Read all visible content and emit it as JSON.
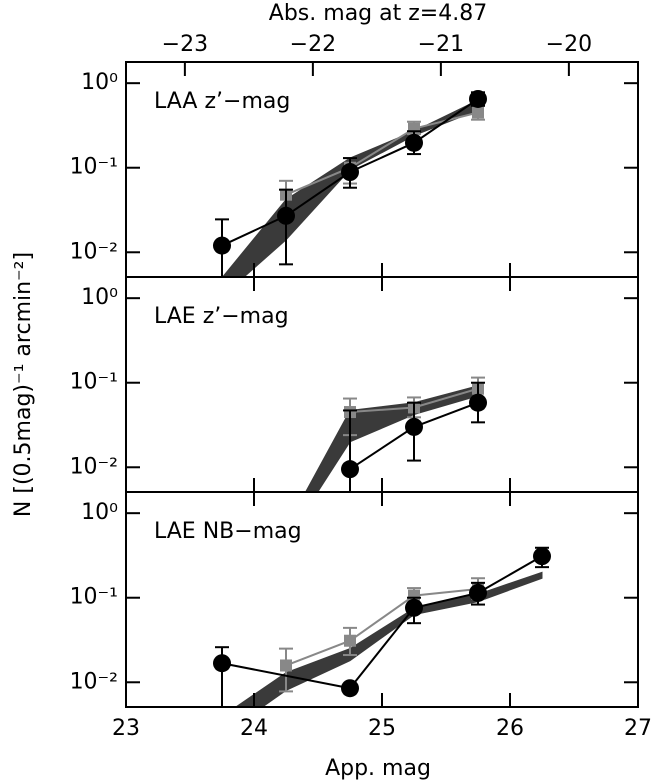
{
  "chart_data": [
    {
      "type": "line",
      "title": "Abs. mag at z=4.87",
      "label": "LAA z’−mag",
      "x2lim": [
        -23.46,
        -19.46
      ],
      "x2ticks": [
        {
          "value": -23,
          "label": "−23"
        },
        {
          "value": -22,
          "label": "−22"
        },
        {
          "value": -21,
          "label": "−21"
        },
        {
          "value": -20,
          "label": "−20"
        }
      ],
      "xlim": [
        23,
        27
      ],
      "xticks": [
        23,
        24,
        25,
        26,
        27
      ],
      "ylim": [
        0.0051,
        1.78
      ],
      "log_y": true,
      "yticks": [
        {
          "value": 1,
          "label": "10⁰"
        },
        {
          "value": 0.1,
          "label": "10⁻¹"
        },
        {
          "value": 0.01,
          "label": "10⁻²"
        }
      ],
      "band": {
        "color": "#3a3a3a",
        "x": [
          23.75,
          24.25,
          24.75,
          25.25,
          25.75
        ],
        "lower": [
          0.003,
          0.014,
          0.095,
          0.24,
          0.48
        ],
        "upper": [
          0.005,
          0.042,
          0.13,
          0.27,
          0.63
        ]
      },
      "series": [
        {
          "color": "#888888",
          "marker": "square",
          "x": [
            24.25,
            24.75,
            25.25,
            25.75
          ],
          "values": [
            0.048,
            0.1,
            0.29,
            0.45
          ],
          "lower": [
            0.031,
            0.065,
            0.25,
            0.37
          ],
          "upper": [
            0.07,
            0.13,
            0.35,
            0.57
          ]
        },
        {
          "color": "#000000",
          "marker": "circle",
          "x": [
            23.75,
            24.25,
            24.75,
            25.25,
            25.75
          ],
          "values": [
            0.012,
            0.027,
            0.089,
            0.197,
            0.65
          ],
          "lower": [
            0.001,
            0.0072,
            0.058,
            0.145,
            0.54
          ],
          "upper": [
            0.0245,
            0.055,
            0.13,
            0.27,
            0.78
          ]
        }
      ]
    },
    {
      "type": "line",
      "label": "LAE z’−mag",
      "ylabel": "N [(0.5mag)⁻¹ arcmin⁻²]",
      "xlim": [
        23,
        27
      ],
      "xticks": [
        23,
        24,
        25,
        26,
        27
      ],
      "ylim": [
        0.0051,
        1.78
      ],
      "log_y": true,
      "yticks": [
        {
          "value": 1,
          "label": "10⁰"
        },
        {
          "value": 0.1,
          "label": "10⁻¹"
        },
        {
          "value": 0.01,
          "label": "10⁻²"
        }
      ],
      "band": {
        "color": "#3a3a3a",
        "x": [
          24.4,
          24.75,
          25.25,
          25.75
        ],
        "lower": [
          0.003,
          0.02,
          0.042,
          0.07
        ],
        "upper": [
          0.005,
          0.047,
          0.058,
          0.092
        ]
      },
      "series": [
        {
          "color": "#888888",
          "marker": "square",
          "x": [
            24.75,
            25.25,
            25.75
          ],
          "values": [
            0.045,
            0.051,
            0.085
          ],
          "lower": [
            0.024,
            0.039,
            0.063
          ],
          "upper": [
            0.065,
            0.067,
            0.115
          ]
        },
        {
          "color": "#000000",
          "marker": "circle",
          "x": [
            24.75,
            25.25,
            25.75
          ],
          "values": [
            0.0095,
            0.03,
            0.058
          ],
          "lower": [
            0.001,
            0.012,
            0.034
          ],
          "upper": [
            0.047,
            0.058,
            0.1
          ]
        }
      ]
    },
    {
      "type": "line",
      "label": "LAE NB−mag",
      "xlabel": "App. mag",
      "xlim": [
        23,
        27
      ],
      "xticks": [
        23,
        24,
        25,
        26,
        27
      ],
      "ylim": [
        0.0051,
        1.78
      ],
      "log_y": true,
      "yticks": [
        {
          "value": 1,
          "label": "10⁰"
        },
        {
          "value": 0.1,
          "label": "10⁻¹"
        },
        {
          "value": 0.01,
          "label": "10⁻²"
        }
      ],
      "band": {
        "color": "#3a3a3a",
        "x": [
          23.85,
          24.25,
          24.75,
          25.25,
          25.75,
          26.25
        ],
        "lower": [
          0.003,
          0.008,
          0.018,
          0.063,
          0.09,
          0.17
        ],
        "upper": [
          0.005,
          0.013,
          0.025,
          0.075,
          0.11,
          0.2
        ]
      },
      "series": [
        {
          "color": "#888888",
          "marker": "square",
          "x": [
            24.25,
            24.75,
            25.25,
            25.75
          ],
          "values": [
            0.0158,
            0.031,
            0.106,
            0.127
          ],
          "lower": [
            0.0078,
            0.021,
            0.08,
            0.097
          ],
          "upper": [
            0.025,
            0.044,
            0.13,
            0.17
          ]
        },
        {
          "color": "#000000",
          "marker": "circle",
          "x": [
            23.75,
            24.75,
            25.25,
            25.75,
            26.25
          ],
          "values": [
            0.0168,
            0.0085,
            0.076,
            0.114,
            0.31
          ],
          "lower": [
            0.001,
            null,
            0.05,
            0.083,
            0.23
          ],
          "upper": [
            0.026,
            null,
            0.1,
            0.15,
            0.39
          ]
        }
      ]
    }
  ]
}
